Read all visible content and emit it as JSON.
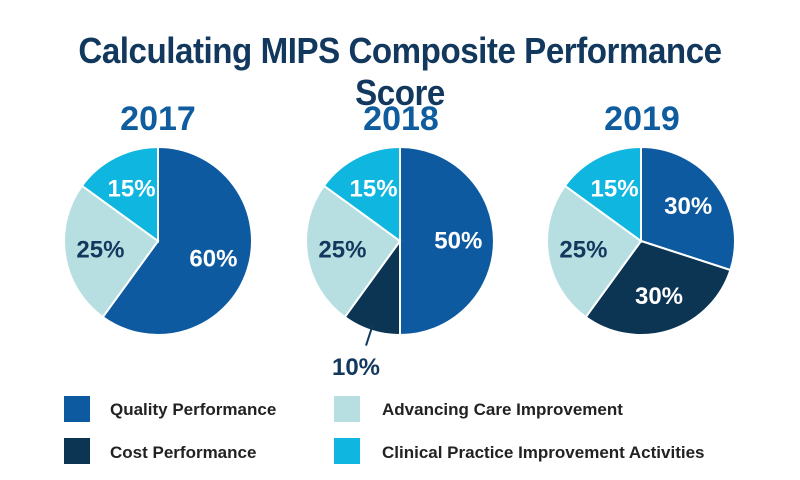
{
  "title": "Calculating MIPS Composite Performance Score",
  "colors": {
    "quality": "#0d5aa1",
    "cost": "#0c3554",
    "advancing": "#b7dfe1",
    "clinical": "#0fb6df",
    "title": "#12385e",
    "year": "#0f5c9e"
  },
  "legend": [
    {
      "key": "quality",
      "label": "Quality Performance"
    },
    {
      "key": "cost",
      "label": "Cost Performance"
    },
    {
      "key": "advancing",
      "label": "Advancing Care Improvement"
    },
    {
      "key": "clinical",
      "label": "Clinical Practice Improvement Activities"
    }
  ],
  "chart_data": [
    {
      "type": "pie",
      "title": "2017",
      "slices": [
        {
          "key": "quality",
          "label": "Quality Performance",
          "value": 60,
          "display": "60%"
        },
        {
          "key": "advancing",
          "label": "Advancing Care Improvement",
          "value": 25,
          "display": "25%"
        },
        {
          "key": "clinical",
          "label": "Clinical Practice Improvement Activities",
          "value": 15,
          "display": "15%"
        }
      ]
    },
    {
      "type": "pie",
      "title": "2018",
      "slices": [
        {
          "key": "quality",
          "label": "Quality Performance",
          "value": 50,
          "display": "50%"
        },
        {
          "key": "cost",
          "label": "Cost Performance",
          "value": 10,
          "display": "10%"
        },
        {
          "key": "advancing",
          "label": "Advancing Care Improvement",
          "value": 25,
          "display": "25%"
        },
        {
          "key": "clinical",
          "label": "Clinical Practice Improvement Activities",
          "value": 15,
          "display": "15%"
        }
      ]
    },
    {
      "type": "pie",
      "title": "2019",
      "slices": [
        {
          "key": "quality",
          "label": "Quality Performance",
          "value": 30,
          "display": "30%"
        },
        {
          "key": "cost",
          "label": "Cost Performance",
          "value": 30,
          "display": "30%"
        },
        {
          "key": "advancing",
          "label": "Advancing Care Improvement",
          "value": 25,
          "display": "25%"
        },
        {
          "key": "clinical",
          "label": "Clinical Practice Improvement Activities",
          "value": 15,
          "display": "15%"
        }
      ]
    }
  ]
}
